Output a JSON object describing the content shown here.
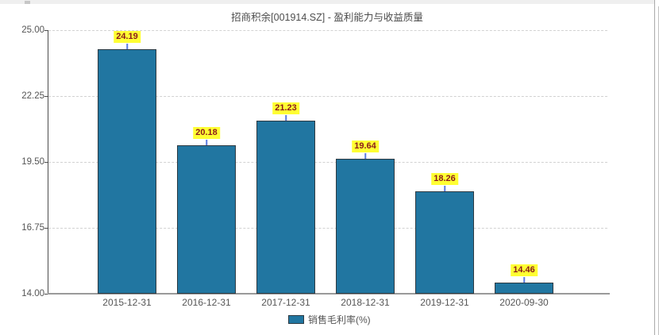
{
  "chart_data": {
    "type": "bar",
    "title": "招商积余[001914.SZ] - 盈利能力与收益质量",
    "categories": [
      "2015-12-31",
      "2016-12-31",
      "2017-12-31",
      "2018-12-31",
      "2019-12-31",
      "2020-09-30"
    ],
    "series": [
      {
        "name": "销售毛利率(%)",
        "values": [
          24.19,
          20.18,
          21.23,
          19.64,
          18.26,
          14.46
        ]
      }
    ],
    "value_labels": [
      "24.19",
      "20.18",
      "21.23",
      "19.64",
      "18.26",
      "14.46"
    ],
    "ylim": [
      14.0,
      25.0
    ],
    "yticks": [
      14.0,
      16.75,
      19.5,
      22.25,
      25.0
    ],
    "ytick_labels": [
      "14.00",
      "16.75",
      "19.50",
      "22.25",
      "25.00"
    ],
    "grid": "horizontal-dashed",
    "legend_position": "bottom",
    "colors": {
      "bar_fill": "#2176a1",
      "bar_border": "#2e3a42",
      "value_label_bg": "#ffff33",
      "value_label_text": "#8b1a1a",
      "label_tick": "#5b7be0",
      "axis_line": "#9a9a9a",
      "tick_text": "#555555"
    }
  }
}
